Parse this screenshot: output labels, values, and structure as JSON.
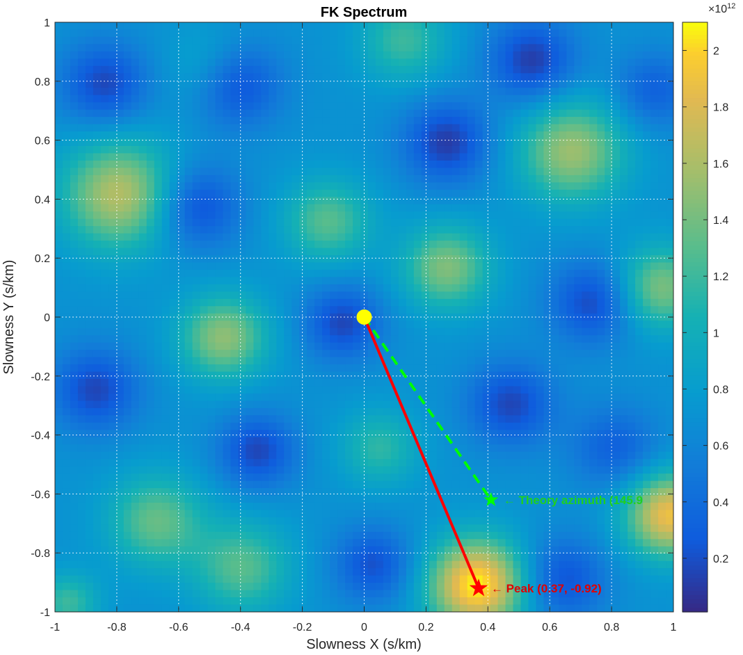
{
  "chart_data": {
    "type": "heatmap",
    "title": "FK Spectrum",
    "xlabel": "Slowness X (s/km)",
    "ylabel": "Slowness Y (s/km)",
    "xlim": [
      -1,
      1
    ],
    "ylim": [
      -1,
      1
    ],
    "grid": true,
    "x_ticks": [
      "-1",
      "-0.8",
      "-0.6",
      "-0.4",
      "-0.2",
      "0",
      "0.2",
      "0.4",
      "0.6",
      "0.8",
      "1"
    ],
    "y_ticks": [
      "-1",
      "-0.8",
      "-0.6",
      "-0.4",
      "-0.2",
      "0",
      "0.2",
      "0.4",
      "0.6",
      "0.8",
      "1"
    ],
    "colorbar": {
      "colormap": "parula",
      "range": [
        0.01,
        2.1
      ],
      "exponent_label": "×10",
      "exponent": "12",
      "ticks": [
        "0.2",
        "0.4",
        "0.6",
        "0.8",
        "1",
        "1.2",
        "1.4",
        "1.6",
        "1.8",
        "2"
      ]
    },
    "field": {
      "resolution": 81,
      "base": 0.7,
      "peaks": [
        {
          "x": 0.37,
          "y": -0.92,
          "amp": 1.4,
          "sigma": 0.11
        },
        {
          "x": 1.0,
          "y": -0.68,
          "amp": 1.2,
          "sigma": 0.1
        },
        {
          "x": -0.8,
          "y": 0.42,
          "amp": 0.95,
          "sigma": 0.13
        },
        {
          "x": 0.68,
          "y": 0.57,
          "amp": 0.85,
          "sigma": 0.12
        },
        {
          "x": 0.97,
          "y": 0.1,
          "amp": 0.75,
          "sigma": 0.1
        },
        {
          "x": 0.27,
          "y": 0.17,
          "amp": 0.75,
          "sigma": 0.1
        },
        {
          "x": -0.12,
          "y": 0.33,
          "amp": 0.6,
          "sigma": 0.1
        },
        {
          "x": -0.46,
          "y": -0.07,
          "amp": 0.8,
          "sigma": 0.1
        },
        {
          "x": -0.68,
          "y": -0.7,
          "amp": 0.65,
          "sigma": 0.11
        },
        {
          "x": -0.4,
          "y": -0.86,
          "amp": 0.6,
          "sigma": 0.11
        },
        {
          "x": 0.05,
          "y": -0.45,
          "amp": 0.45,
          "sigma": 0.09
        },
        {
          "x": 0.13,
          "y": 0.95,
          "amp": 0.5,
          "sigma": 0.1
        },
        {
          "x": -0.97,
          "y": -0.98,
          "amp": 0.5,
          "sigma": 0.07
        },
        {
          "x": -0.5,
          "y": 0.85,
          "amp": 0.3,
          "sigma": 0.1
        },
        {
          "x": -0.85,
          "y": 0.8,
          "amp": -0.55,
          "sigma": 0.1
        },
        {
          "x": -0.42,
          "y": 0.8,
          "amp": -0.6,
          "sigma": 0.1
        },
        {
          "x": 0.27,
          "y": 0.6,
          "amp": -0.6,
          "sigma": 0.1
        },
        {
          "x": 0.55,
          "y": 0.88,
          "amp": -0.6,
          "sigma": 0.1
        },
        {
          "x": -0.55,
          "y": 0.38,
          "amp": -0.55,
          "sigma": 0.1
        },
        {
          "x": 0.75,
          "y": 0.05,
          "amp": -0.55,
          "sigma": 0.1
        },
        {
          "x": -0.07,
          "y": -0.02,
          "amp": -0.55,
          "sigma": 0.09
        },
        {
          "x": -0.88,
          "y": -0.25,
          "amp": -0.55,
          "sigma": 0.1
        },
        {
          "x": 0.48,
          "y": -0.3,
          "amp": -0.55,
          "sigma": 0.1
        },
        {
          "x": -0.35,
          "y": -0.46,
          "amp": -0.55,
          "sigma": 0.09
        },
        {
          "x": 0.65,
          "y": -0.9,
          "amp": -0.5,
          "sigma": 0.1
        },
        {
          "x": 0.03,
          "y": -0.85,
          "amp": -0.5,
          "sigma": 0.09
        },
        {
          "x": 0.82,
          "y": -0.45,
          "amp": -0.4,
          "sigma": 0.1
        },
        {
          "x": 0.95,
          "y": 0.78,
          "amp": -0.4,
          "sigma": 0.09
        }
      ]
    },
    "origin": {
      "x": 0,
      "y": 0
    },
    "peak": {
      "x": 0.37,
      "y": -0.92,
      "label": "← Peak  (0.37,  -0.92)"
    },
    "theory": {
      "x": 0.41,
      "y": -0.62,
      "label": "← Theory  azimuth  (145.9"
    },
    "colors": {
      "peak": "#ff0000",
      "theory": "#00ff00",
      "origin": "#ffff00",
      "peak_text": "#e00000",
      "theory_text": "#1fd01f"
    }
  }
}
